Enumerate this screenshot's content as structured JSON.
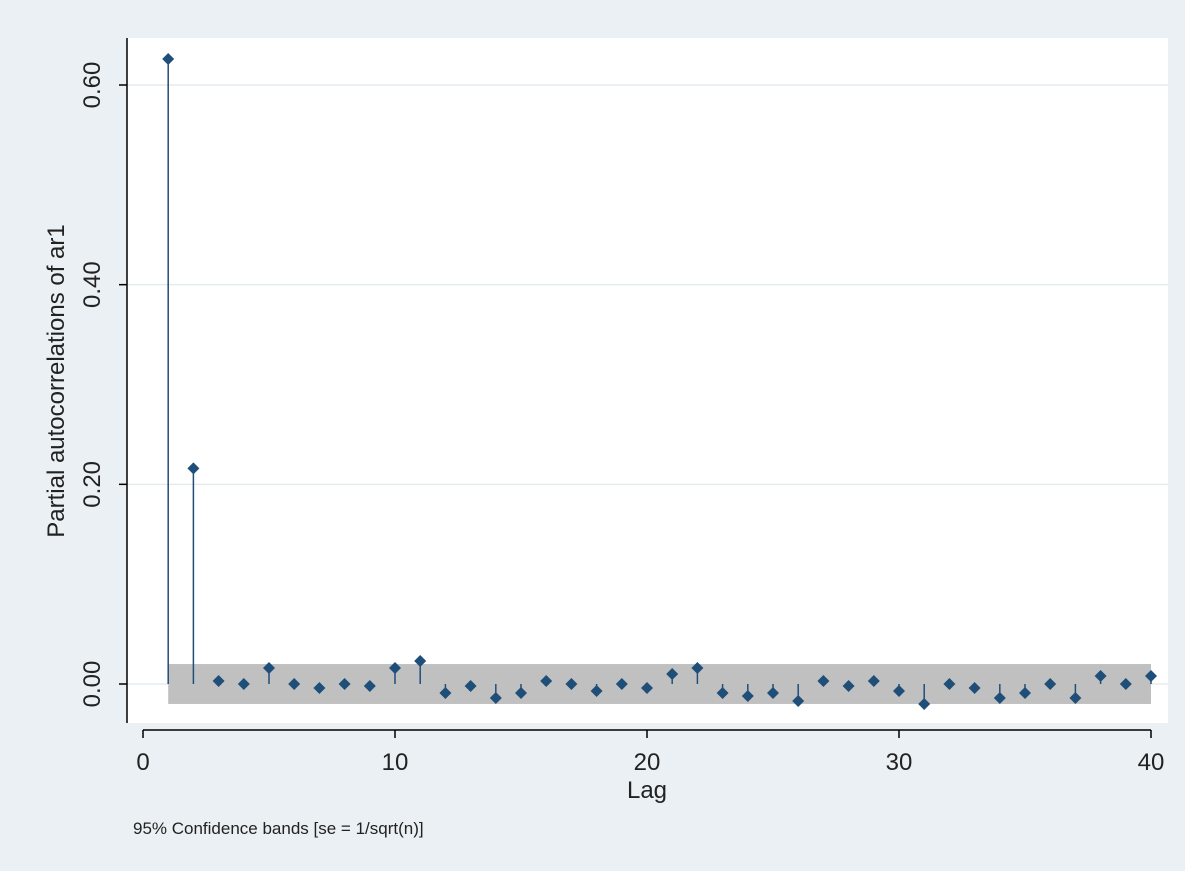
{
  "chart_data": {
    "type": "scatter",
    "subtype": "partial-autocorrelation-spike-plot",
    "xlabel": "Lag",
    "ylabel": "Partial autocorrelations of ar1",
    "note": "95% Confidence bands [se = 1/sqrt(n)]",
    "xlim": [
      0,
      40
    ],
    "ylim": [
      -0.04,
      0.64
    ],
    "xticks": [
      0,
      10,
      20,
      30,
      40
    ],
    "xtick_labels": [
      "0",
      "10",
      "20",
      "30",
      "40"
    ],
    "yticks": [
      0,
      0.2,
      0.4,
      0.6
    ],
    "ytick_labels": [
      "0.00",
      "0.20",
      "0.40",
      "0.60"
    ],
    "grid": true,
    "confidence_band": [
      -0.02,
      0.02
    ],
    "x": [
      1,
      2,
      3,
      4,
      5,
      6,
      7,
      8,
      9,
      10,
      11,
      12,
      13,
      14,
      15,
      16,
      17,
      18,
      19,
      20,
      21,
      22,
      23,
      24,
      25,
      26,
      27,
      28,
      29,
      30,
      31,
      32,
      33,
      34,
      35,
      36,
      37,
      38,
      39,
      40
    ],
    "values": [
      0.626,
      0.216,
      0.003,
      0.0,
      0.016,
      0.0,
      -0.004,
      0.0,
      -0.002,
      0.016,
      0.023,
      -0.009,
      -0.002,
      -0.014,
      -0.009,
      0.003,
      0.0,
      -0.007,
      0.0,
      -0.004,
      0.01,
      0.016,
      -0.009,
      -0.012,
      -0.009,
      -0.017,
      0.003,
      -0.002,
      0.003,
      -0.007,
      -0.02,
      0.0,
      -0.004,
      -0.014,
      -0.009,
      0.0,
      -0.014,
      0.008,
      0.0,
      0.008
    ],
    "colors": {
      "marker": "#1f4e79",
      "band": "#c0c0c0",
      "plot_bg": "#ffffff",
      "outer_bg": "#eaf0f3",
      "grid": "#e4ecef",
      "axis": "#000000"
    }
  }
}
